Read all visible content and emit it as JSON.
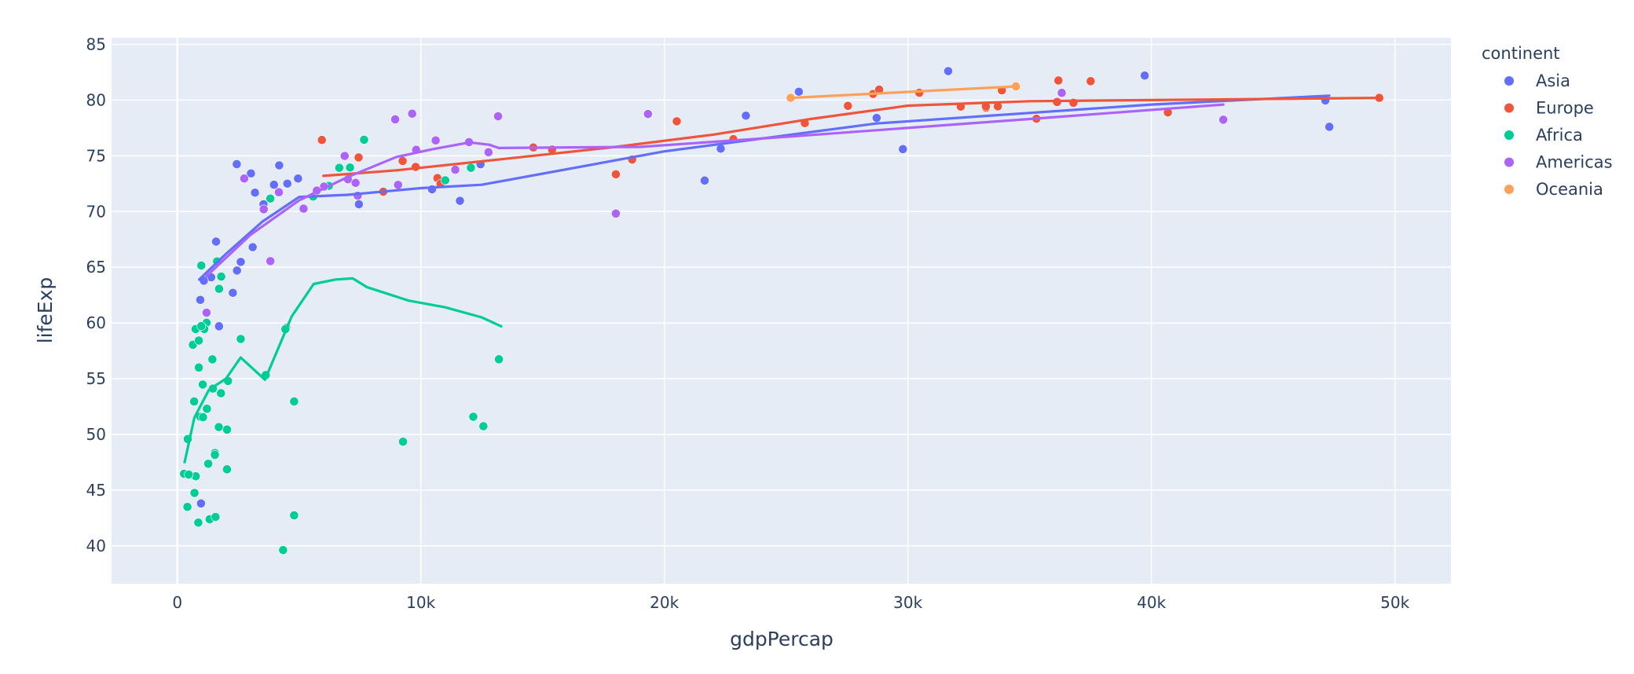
{
  "chart_data": {
    "type": "scatter",
    "xlabel": "gdpPercap",
    "ylabel": "lifeExp",
    "xlim": [
      -2700,
      52300
    ],
    "ylim": [
      36.6,
      85.6
    ],
    "x_ticks": [
      0,
      10000,
      20000,
      30000,
      40000,
      50000
    ],
    "x_tick_labels": [
      "0",
      "10k",
      "20k",
      "30k",
      "40k",
      "50k"
    ],
    "y_ticks": [
      40,
      45,
      50,
      55,
      60,
      65,
      70,
      75,
      80,
      85
    ],
    "y_tick_labels": [
      "40",
      "45",
      "50",
      "55",
      "60",
      "65",
      "70",
      "75",
      "80",
      "85"
    ],
    "grid": true,
    "legend_title": "continent",
    "legend_position": "top-right",
    "series": [
      {
        "name": "Asia",
        "color": "#636efa",
        "points": [
          [
            974,
            43.8
          ],
          [
            29796,
            75.6
          ],
          [
            1391,
            64.1
          ],
          [
            1714,
            59.7
          ],
          [
            4959,
            72.96
          ],
          [
            39725,
            82.2
          ],
          [
            2452,
            64.7
          ],
          [
            3541,
            70.65
          ],
          [
            11606,
            70.96
          ],
          [
            4471,
            59.55
          ],
          [
            31656,
            82.6
          ],
          [
            4519,
            72.5
          ],
          [
            1593,
            67.3
          ],
          [
            23348,
            78.6
          ],
          [
            47307,
            77.6
          ],
          [
            10461,
            71.99
          ],
          [
            12452,
            74.24
          ],
          [
            3096,
            66.8
          ],
          [
            944,
            62.07
          ],
          [
            1091,
            63.79
          ],
          [
            22316,
            75.64
          ],
          [
            2606,
            65.48
          ],
          [
            3190,
            71.69
          ],
          [
            21655,
            72.78
          ],
          [
            47143,
            79.97
          ],
          [
            3970,
            72.4
          ],
          [
            4185,
            74.14
          ],
          [
            28718,
            78.4
          ],
          [
            7458,
            70.65
          ],
          [
            2442,
            74.25
          ],
          [
            3025,
            73.42
          ],
          [
            25523,
            80.75
          ],
          [
            2281,
            62.7
          ]
        ],
        "trend": [
          [
            900,
            63.9
          ],
          [
            2000,
            66.2
          ],
          [
            3500,
            69.1
          ],
          [
            5000,
            71.3
          ],
          [
            7000,
            71.5
          ],
          [
            10000,
            72.1
          ],
          [
            12500,
            72.4
          ],
          [
            20000,
            75.4
          ],
          [
            28700,
            77.9
          ],
          [
            40000,
            79.6
          ],
          [
            47300,
            80.4
          ]
        ]
      },
      {
        "name": "Europe",
        "color": "#ef553b",
        "points": [
          [
            5937,
            76.42
          ],
          [
            36126,
            79.83
          ],
          [
            33693,
            79.44
          ],
          [
            7446,
            74.85
          ],
          [
            10681,
            73.0
          ],
          [
            14619,
            75.75
          ],
          [
            22834,
            76.49
          ],
          [
            35278,
            78.33
          ],
          [
            33207,
            79.31
          ],
          [
            30470,
            80.66
          ],
          [
            32170,
            79.41
          ],
          [
            27538,
            79.48
          ],
          [
            18009,
            73.34
          ],
          [
            36181,
            81.76
          ],
          [
            40676,
            78.89
          ],
          [
            28570,
            80.55
          ],
          [
            9254,
            74.54
          ],
          [
            36798,
            79.76
          ],
          [
            49357,
            80.2
          ],
          [
            15390,
            75.56
          ],
          [
            20510,
            78.1
          ],
          [
            10808,
            72.48
          ],
          [
            9787,
            74.0
          ],
          [
            18678,
            74.66
          ],
          [
            25768,
            77.93
          ],
          [
            28821,
            80.94
          ],
          [
            33860,
            80.88
          ],
          [
            37506,
            81.7
          ],
          [
            8458,
            71.78
          ],
          [
            33203,
            79.43
          ]
        ],
        "trend": [
          [
            6000,
            73.2
          ],
          [
            9000,
            73.7
          ],
          [
            12500,
            74.5
          ],
          [
            18000,
            75.8
          ],
          [
            22000,
            76.9
          ],
          [
            26000,
            78.3
          ],
          [
            30000,
            79.5
          ],
          [
            35000,
            79.9
          ],
          [
            40000,
            80.0
          ],
          [
            49357,
            80.2
          ]
        ]
      },
      {
        "name": "Africa",
        "color": "#00cc96",
        "points": [
          [
            6223,
            72.3
          ],
          [
            4797,
            42.73
          ],
          [
            1441,
            56.73
          ],
          [
            12570,
            50.73
          ],
          [
            1217,
            52.3
          ],
          [
            430,
            49.58
          ],
          [
            2042,
            50.43
          ],
          [
            706,
            44.74
          ],
          [
            1704,
            50.65
          ],
          [
            986,
            65.15
          ],
          [
            277,
            46.46
          ],
          [
            3633,
            55.32
          ],
          [
            1545,
            48.33
          ],
          [
            2082,
            54.79
          ],
          [
            5581,
            71.34
          ],
          [
            12154,
            51.58
          ],
          [
            641,
            58.04
          ],
          [
            691,
            52.95
          ],
          [
            13206,
            56.74
          ],
          [
            752,
            59.45
          ],
          [
            1328,
            42.38
          ],
          [
            4797,
            52.95
          ],
          [
            1463,
            54.11
          ],
          [
            1569,
            42.59
          ],
          [
            12057,
            73.92
          ],
          [
            1045,
            54.47
          ],
          [
            759,
            46.24
          ],
          [
            415,
            43.49
          ],
          [
            9254,
            49.34
          ],
          [
            1794,
            53.69
          ],
          [
            4345,
            39.61
          ],
          [
            3820,
            71.16
          ],
          [
            1634,
            65.52
          ],
          [
            1201,
            60.02
          ],
          [
            883,
            56.0
          ],
          [
            7670,
            76.44
          ],
          [
            1544,
            48.16
          ],
          [
            862,
            42.08
          ],
          [
            1107,
            59.45
          ],
          [
            882,
            58.42
          ],
          [
            1716,
            63.06
          ],
          [
            7093,
            73.95
          ],
          [
            986,
            59.72
          ],
          [
            2605,
            58.56
          ],
          [
            943,
            51.58
          ],
          [
            1271,
            47.36
          ],
          [
            469,
            46.39
          ],
          [
            1804,
            64.16
          ],
          [
            4439,
            59.44
          ],
          [
            1056,
            51.54
          ],
          [
            2040,
            46.86
          ],
          [
            9269,
            49.34
          ],
          [
            11004,
            72.8
          ],
          [
            6652,
            73.92
          ]
        ],
        "trend": [
          [
            300,
            47.5
          ],
          [
            700,
            51.5
          ],
          [
            1300,
            54.0
          ],
          [
            2000,
            55.0
          ],
          [
            2600,
            56.9
          ],
          [
            3600,
            54.9
          ],
          [
            4700,
            60.6
          ],
          [
            5600,
            63.5
          ],
          [
            6500,
            63.9
          ],
          [
            7200,
            64.0
          ],
          [
            7800,
            63.2
          ],
          [
            9500,
            62.0
          ],
          [
            11000,
            61.4
          ],
          [
            12500,
            60.5
          ],
          [
            13300,
            59.7
          ]
        ]
      },
      {
        "name": "Americas",
        "color": "#ab63fa",
        "points": [
          [
            12779,
            75.32
          ],
          [
            3822,
            65.55
          ],
          [
            9066,
            72.39
          ],
          [
            36319,
            80.65
          ],
          [
            13172,
            78.55
          ],
          [
            7007,
            72.89
          ],
          [
            9645,
            78.78
          ],
          [
            8948,
            78.27
          ],
          [
            6025,
            72.24
          ],
          [
            6873,
            74.99
          ],
          [
            5728,
            71.88
          ],
          [
            5186,
            70.26
          ],
          [
            2749,
            72.9
          ],
          [
            1202,
            60.92
          ],
          [
            3548,
            70.2
          ],
          [
            7321,
            72.57
          ],
          [
            2749,
            72.96
          ],
          [
            9809,
            75.54
          ],
          [
            4173,
            71.73
          ],
          [
            11978,
            76.23
          ],
          [
            7408,
            71.42
          ],
          [
            19328,
            78.75
          ],
          [
            18008,
            69.82
          ],
          [
            42952,
            78.24
          ],
          [
            10611,
            76.38
          ],
          [
            11416,
            73.75
          ]
        ],
        "trend": [
          [
            1200,
            64.2
          ],
          [
            3000,
            67.9
          ],
          [
            5000,
            71.0
          ],
          [
            7000,
            73.1
          ],
          [
            9000,
            74.9
          ],
          [
            10500,
            75.6
          ],
          [
            12000,
            76.2
          ],
          [
            12800,
            76.0
          ],
          [
            13200,
            75.7
          ],
          [
            19000,
            75.8
          ],
          [
            25000,
            76.7
          ],
          [
            35000,
            78.3
          ],
          [
            42952,
            79.6
          ]
        ]
      },
      {
        "name": "Oceania",
        "color": "#ffa15a",
        "points": [
          [
            34435,
            81.23
          ],
          [
            25185,
            80.2
          ]
        ],
        "trend": [
          [
            25185,
            80.2
          ],
          [
            34435,
            81.23
          ]
        ]
      }
    ]
  }
}
